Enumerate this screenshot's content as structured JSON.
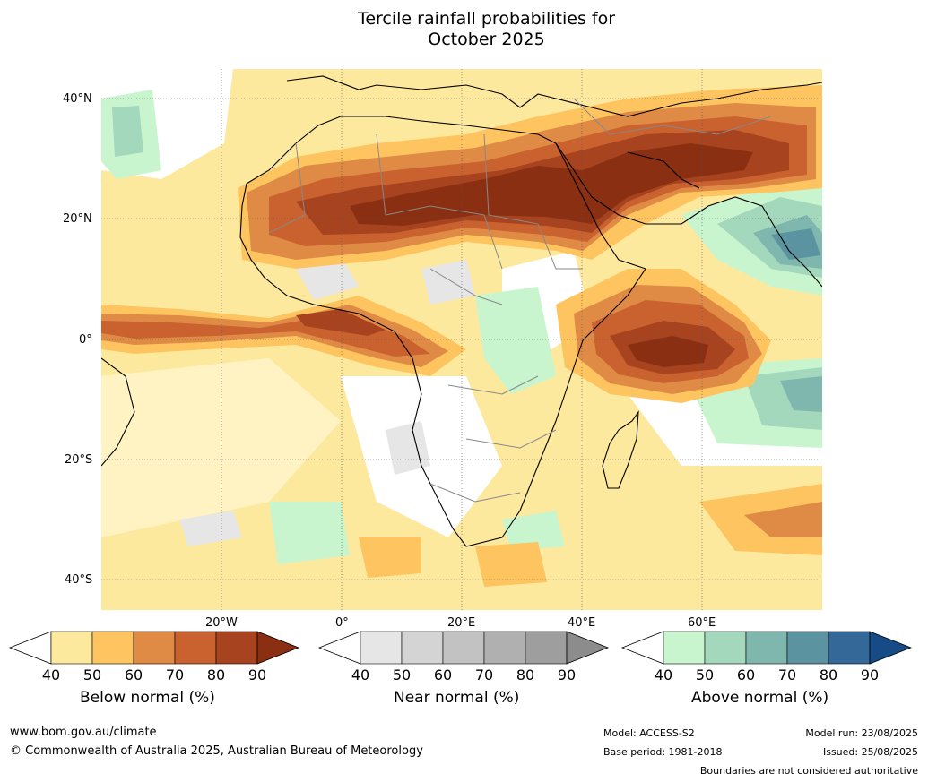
{
  "title": {
    "line1": "Tercile rainfall probabilities for",
    "line2": "October 2025"
  },
  "map": {
    "lat_labels": [
      "40°N",
      "20°N",
      "0°",
      "20°S",
      "40°S"
    ],
    "lon_labels": [
      "20°W",
      "0°",
      "20°E",
      "40°E",
      "60°E"
    ],
    "colors": {
      "below": [
        "#fde99e",
        "#fdc460",
        "#e08b45",
        "#c9622f",
        "#a8431f",
        "#8a2f12"
      ],
      "near": [
        "#e6e6e6",
        "#d4d4d4",
        "#c2c2c2",
        "#b0b0b0",
        "#9e9e9e",
        "#8c8c8c"
      ],
      "above": [
        "#c8f5ce",
        "#a3d8bc",
        "#7fb7ae",
        "#5b93a0",
        "#336898",
        "#164b85"
      ]
    }
  },
  "colorbars": [
    {
      "name": "below",
      "label": "Below normal (%)",
      "ticks": [
        "40",
        "50",
        "60",
        "70",
        "80",
        "90"
      ]
    },
    {
      "name": "near",
      "label": "Near normal (%)",
      "ticks": [
        "40",
        "50",
        "60",
        "70",
        "80",
        "90"
      ]
    },
    {
      "name": "above",
      "label": "Above normal (%)",
      "ticks": [
        "40",
        "50",
        "60",
        "70",
        "80",
        "90"
      ]
    }
  ],
  "footer": {
    "website": "www.bom.gov.au/climate",
    "copyright": "© Commonwealth of Australia 2025, Australian Bureau of Meteorology",
    "model": "Model: ACCESS-S2",
    "base_period": "Base period: 1981-2018",
    "model_run": "Model run: 23/08/2025",
    "issued": "Issued: 25/08/2025",
    "disclaimer": "Boundaries are not considered authoritative"
  }
}
